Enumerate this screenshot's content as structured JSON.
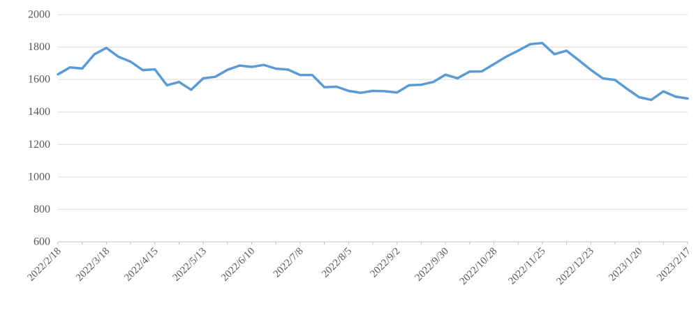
{
  "chart_data": {
    "type": "line",
    "title": "",
    "legend": "none",
    "grid": "horizontal",
    "x_tick_labels": [
      "2022/2/18",
      "2022/3/18",
      "2022/4/15",
      "2022/5/13",
      "2022/6/10",
      "2022/7/8",
      "2022/8/5",
      "2022/9/2",
      "2022/9/30",
      "2022/10/28",
      "2022/11/25",
      "2022/12/23",
      "2023/1/20",
      "2023/2/17"
    ],
    "label_every_n_points": 4,
    "minor_tick_every_n_points": 2,
    "x_label_rotation_deg": -45,
    "series": [
      {
        "name": "",
        "color": "#5B9BD5",
        "values": [
          1632,
          1675,
          1668,
          1755,
          1795,
          1740,
          1710,
          1658,
          1663,
          1565,
          1585,
          1537,
          1608,
          1617,
          1660,
          1686,
          1678,
          1690,
          1667,
          1661,
          1628,
          1628,
          1553,
          1556,
          1530,
          1518,
          1530,
          1528,
          1520,
          1565,
          1568,
          1585,
          1630,
          1608,
          1649,
          1650,
          1695,
          1740,
          1778,
          1818,
          1825,
          1756,
          1778,
          1720,
          1660,
          1607,
          1598,
          1542,
          1491,
          1475,
          1527,
          1495,
          1483
        ]
      }
    ],
    "y_axis": {
      "min": 600,
      "max": 2000,
      "tick_step": 200,
      "tick_labels": [
        "600",
        "800",
        "1000",
        "1200",
        "1400",
        "1600",
        "1800",
        "2000"
      ]
    },
    "colors": {
      "series": "#5B9BD5",
      "grid": "#D9D9D9",
      "axis": "#BFBFBF",
      "tick_text": "#595959",
      "background": "#FFFFFF"
    }
  }
}
